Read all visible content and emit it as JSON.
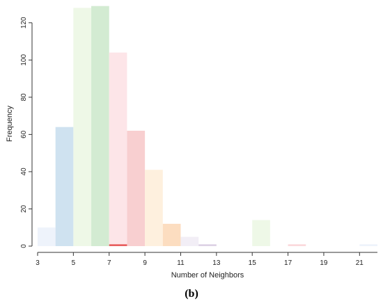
{
  "chart_data": {
    "type": "bar",
    "title": "",
    "xlabel": "Number of Neighbors",
    "ylabel": "Frequency",
    "xlim": [
      3,
      22
    ],
    "ylim": [
      0,
      130
    ],
    "x_ticks": [
      3,
      5,
      7,
      9,
      11,
      13,
      15,
      17,
      19,
      21
    ],
    "y_ticks": [
      0,
      20,
      40,
      60,
      80,
      100,
      120
    ],
    "bars": [
      {
        "x0": 3,
        "x1": 4,
        "value": 10,
        "color": "#EEF3FB"
      },
      {
        "x0": 4,
        "x1": 5,
        "value": 64,
        "color": "#CFE2F0"
      },
      {
        "x0": 5,
        "x1": 6,
        "value": 128,
        "color": "#EEF8E7"
      },
      {
        "x0": 6,
        "x1": 7,
        "value": 129,
        "color": "#D3EBD2"
      },
      {
        "x0": 7,
        "x1": 8,
        "value": 104,
        "color": "#FDE5E8"
      },
      {
        "x0": 8,
        "x1": 9,
        "value": 62,
        "color": "#F8CFD0"
      },
      {
        "x0": 9,
        "x1": 10,
        "value": 41,
        "color": "#FEF0DE"
      },
      {
        "x0": 10,
        "x1": 11,
        "value": 12,
        "color": "#FCDDC0"
      },
      {
        "x0": 11,
        "x1": 12,
        "value": 5,
        "color": "#F2EEF6"
      },
      {
        "x0": 12,
        "x1": 13,
        "value": 1,
        "color": "#DDD3E5"
      },
      {
        "x0": 15,
        "x1": 16,
        "value": 14,
        "color": "#EEF8E7"
      },
      {
        "x0": 17,
        "x1": 18,
        "value": 1,
        "color": "#FBD9DC"
      },
      {
        "x0": 21,
        "x1": 22,
        "value": 1,
        "color": "#EEF3FB"
      }
    ],
    "overlay_marks": [
      {
        "x0": 7,
        "x1": 8,
        "value": 1,
        "color": "#E86060"
      }
    ],
    "grid": false,
    "legend": "none"
  },
  "caption": "(b)"
}
